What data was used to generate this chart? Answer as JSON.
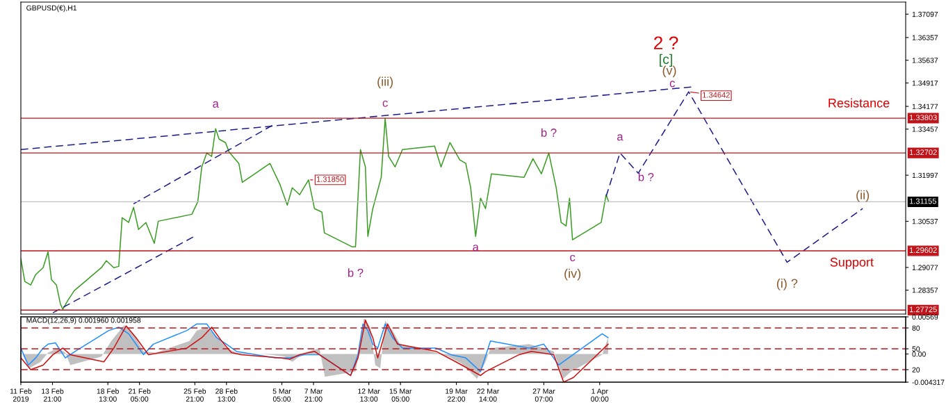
{
  "chart_data": [
    {
      "type": "line",
      "title": "GBPUSD(€),H1",
      "xlim": [
        "2019-02-11T05:00",
        "2019-04-26T19:00"
      ],
      "ylim": [
        1.276,
        1.3748
      ],
      "yticks": [
        1.37097,
        1.36357,
        1.35637,
        1.34917,
        1.34177,
        1.33457,
        1.31997,
        1.30537,
        1.29077,
        1.28357
      ],
      "tick_labels": "y",
      "grid": false,
      "legend": false,
      "series": [
        {
          "color": "#3a9d23",
          "x": [
            "2019-02-11T05:00",
            "2019-02-11T13:00",
            "2019-02-12T01:00",
            "2019-02-12T11:00",
            "2019-02-13T02:00",
            "2019-02-13T12:00",
            "2019-02-13T19:00",
            "2019-02-14T05:00",
            "2019-02-14T13:00",
            "2019-02-14T18:00",
            "2019-02-15T04:00",
            "2019-02-15T17:00",
            "2019-02-18T00:00",
            "2019-02-18T10:00",
            "2019-02-19T01:00",
            "2019-02-19T11:00",
            "2019-02-19T18:00",
            "2019-02-20T07:00",
            "2019-02-20T17:00",
            "2019-02-21T03:00",
            "2019-02-21T18:00",
            "2019-02-22T11:00",
            "2019-02-22T19:00",
            "2019-02-25T15:00",
            "2019-02-26T03:00",
            "2019-02-26T11:00",
            "2019-02-26T21:00",
            "2019-02-27T07:00",
            "2019-02-27T15:00",
            "2019-02-27T22:00",
            "2019-02-28T11:00",
            "2019-02-28T18:00",
            "2019-03-01T14:00",
            "2019-03-01T21:00",
            "2019-03-04T05:00",
            "2019-03-05T01:00",
            "2019-03-05T16:00",
            "2019-03-06T02:00",
            "2019-03-06T17:00",
            "2019-03-07T11:00",
            "2019-03-07T23:00",
            "2019-03-08T14:00",
            "2019-03-08T19:00",
            "2019-03-11T03:00",
            "2019-03-11T10:00",
            "2019-03-11T20:00",
            "2019-03-12T06:00",
            "2019-03-12T11:00",
            "2019-03-12T21:00",
            "2019-03-13T14:00",
            "2019-03-13T22:00",
            "2019-03-14T05:00",
            "2019-03-14T18:00",
            "2019-03-15T09:00",
            "2019-03-18T02:00",
            "2019-03-18T15:00",
            "2019-03-19T09:00",
            "2019-03-20T05:00",
            "2019-03-20T17:00",
            "2019-03-21T03:00",
            "2019-03-21T13:00",
            "2019-03-21T23:00",
            "2019-03-22T09:00",
            "2019-03-22T21:00",
            "2019-03-25T15:00",
            "2019-03-26T09:00",
            "2019-03-27T02:00",
            "2019-03-27T17:00",
            "2019-03-28T08:00",
            "2019-03-28T18:00",
            "2019-03-29T04:00",
            "2019-03-29T11:00",
            "2019-03-29T17:00",
            "2019-04-01T03:00",
            "2019-04-01T13:00",
            "2019-04-01T18:00"
          ],
          "values": [
            1.2935,
            1.2863,
            1.2852,
            1.2885,
            1.2907,
            1.2957,
            1.2869,
            1.2852,
            1.2792,
            1.2775,
            1.2803,
            1.2834,
            1.2907,
            1.2929,
            1.2907,
            1.2911,
            1.3065,
            1.305,
            1.3098,
            1.3028,
            1.305,
            1.2984,
            1.3054,
            1.3076,
            1.3116,
            1.3226,
            1.327,
            1.3259,
            1.3347,
            1.3314,
            1.3303,
            1.3274,
            1.3237,
            1.3177,
            1.3237,
            1.3171,
            1.3105,
            1.316,
            1.3138,
            1.3185,
            1.3094,
            1.3083,
            1.3017,
            1.2973,
            1.2973,
            1.3281,
            1.3226,
            1.3006,
            1.3094,
            1.3193,
            1.338,
            1.3259,
            1.3226,
            1.3281,
            1.3292,
            1.3226,
            1.3303,
            1.3248,
            1.3237,
            1.316,
            1.3006,
            1.3127,
            1.3094,
            1.3204,
            1.3193,
            1.3252,
            1.3204,
            1.327,
            1.316,
            1.305,
            1.3039,
            1.3127,
            1.2995,
            1.305,
            1.3138,
            1.3116
          ]
        },
        {
          "color": "#1c1c8a",
          "line_style": "dashed",
          "x": [
            "2019-04-01T13:00",
            "2019-04-02T17:00",
            "2019-04-04T06:00",
            "2019-04-08T12:00",
            "2019-04-16T19:00",
            "2019-04-23T04:00"
          ],
          "values": [
            1.3133,
            1.327,
            1.3206,
            1.3464,
            1.2924,
            1.3094
          ]
        },
        {
          "color": "#1c1c8a",
          "line_style": "dashed",
          "x": [
            "2019-02-11T05:00",
            "2019-04-08T17:00"
          ],
          "values": [
            1.3281,
            1.3479
          ]
        },
        {
          "color": "#1c1c8a",
          "line_style": "dashed",
          "x": [
            "2019-02-20T17:00",
            "2019-03-04T17:00"
          ],
          "values": [
            1.3109,
            1.3364
          ]
        },
        {
          "color": "#1c1c8a",
          "line_style": "dashed",
          "x": [
            "2019-02-13T22:00",
            "2019-02-25T20:00"
          ],
          "values": [
            1.2764,
            1.3006
          ]
        }
      ],
      "ref_lines": [
        {
          "axis": "y",
          "value": 1.33803,
          "label": "1.33803",
          "color": "#c0141a"
        },
        {
          "axis": "y",
          "value": 1.32702,
          "label": "1.32702",
          "color": "#c0141a"
        },
        {
          "axis": "y",
          "value": 1.31155,
          "label": "1.31155",
          "color": "#c0c0c0"
        },
        {
          "axis": "y",
          "value": 1.29602,
          "label": "1.29602",
          "color": "#c0141a"
        },
        {
          "axis": "y",
          "value": 1.27725,
          "label": "1.27725",
          "color": "#c0141a"
        }
      ],
      "annotations": [
        {
          "text": "1.31850",
          "x": "2019-03-07T11:00",
          "y": 1.3185
        },
        {
          "text": "1.34642",
          "x": "2019-04-08T12:00",
          "y": 1.3464
        },
        {
          "text": "a",
          "x": "2019-02-27T15:00",
          "y": 1.3347
        },
        {
          "text": "(iii)",
          "x": "2019-03-13T22:00",
          "y": 1.338
        },
        {
          "text": "c",
          "x": "2019-03-13T22:00",
          "y": 1.338
        },
        {
          "text": "b ?",
          "x": "2019-03-11T10:00",
          "y": 1.2973
        },
        {
          "text": "a",
          "x": "2019-03-21T13:00",
          "y": 1.3006
        },
        {
          "text": "b ?",
          "x": "2019-03-27T17:00",
          "y": 1.327
        },
        {
          "text": "c",
          "x": "2019-03-29T17:00",
          "y": 1.2995
        },
        {
          "text": "(iv)",
          "x": "2019-03-29T17:00",
          "y": 1.2995
        },
        {
          "text": "a",
          "x": "2019-04-02T17:00",
          "y": 1.327
        },
        {
          "text": "b ?",
          "x": "2019-04-04T06:00",
          "y": 1.3206
        },
        "2 ?",
        "[c]",
        {
          "text": "(v)",
          "x": "2019-04-08T12:00",
          "y": 1.3464
        },
        {
          "text": "c",
          "x": "2019-04-08T12:00",
          "y": 1.3464
        },
        {
          "text": "(i) ?",
          "x": "2019-04-16T19:00",
          "y": 1.2924
        },
        {
          "text": "(ii)",
          "x": "2019-04-23T04:00",
          "y": 1.3094
        },
        "Resistance",
        "Support"
      ]
    },
    {
      "type": "line",
      "title": "MACD(12,26,9) 0.001960 0.001958",
      "xlim": [
        "2019-02-11T05:00",
        "2019-04-26T19:00"
      ],
      "ylim": [
        -0.004317,
        0.00569
      ],
      "xticks": [
        {
          "value": "2019-02-11T05:00",
          "label": "11 Feb 2019"
        },
        {
          "value": "2019-02-13T21:00",
          "label": "13 Feb 21:00"
        },
        {
          "value": "2019-02-18T13:00",
          "label": "18 Feb 13:00"
        },
        {
          "value": "2019-02-21T05:00",
          "label": "21 Feb 05:00"
        },
        {
          "value": "2019-02-25T21:00",
          "label": "25 Feb 21:00"
        },
        {
          "value": "2019-02-28T13:00",
          "label": "28 Feb 13:00"
        },
        {
          "value": "2019-03-05T05:00",
          "label": "5 Mar 05:00"
        },
        {
          "value": "2019-03-07T21:00",
          "label": "7 Mar 21:00"
        },
        {
          "value": "2019-03-12T13:00",
          "label": "12 Mar 13:00"
        },
        {
          "value": "2019-03-15T05:00",
          "label": "15 Mar 05:00"
        },
        {
          "value": "2019-03-19T22:00",
          "label": "19 Mar 22:00"
        },
        {
          "value": "2019-03-22T14:00",
          "label": "22 Mar 14:00"
        },
        {
          "value": "2019-03-27T07:00",
          "label": "27 Mar 07:00"
        },
        {
          "value": "2019-04-01T00:00",
          "label": "1 Apr 00:00"
        }
      ],
      "yticks": [
        0.00569,
        {
          "value": 0,
          "label": "0.00"
        },
        -0.004317
      ],
      "grid": false,
      "legend": false,
      "series": [
        {
          "type": "area",
          "color": "#c0c0c0",
          "x": [
            "2019-02-11T05:00",
            "2019-02-11T22:00",
            "2019-02-12T21:00",
            "2019-02-13T12:00",
            "2019-02-14T08:00",
            "2019-02-14T23:00",
            "2019-02-15T09:00",
            "2019-02-18T00:00",
            "2019-02-18T20:00",
            "2019-02-19T22:00",
            "2019-02-20T17:00",
            "2019-02-21T13:00",
            "2019-02-22T14:00",
            "2019-02-25T10:00",
            "2019-02-26T01:00",
            "2019-02-26T22:00",
            "2019-02-27T17:00",
            "2019-02-28T13:00",
            "2019-03-01T09:00",
            "2019-03-04T05:00",
            "2019-03-05T11:00",
            "2019-03-06T02:00",
            "2019-03-07T03:00",
            "2019-03-08T09:00",
            "2019-03-08T20:00",
            "2019-03-11T10:00",
            "2019-03-11T20:00",
            "2019-03-12T03:00",
            "2019-03-12T16:00",
            "2019-03-13T02:00",
            "2019-03-13T12:00",
            "2019-03-13T22:00",
            "2019-03-14T13:00",
            "2019-03-15T04:00",
            "2019-03-18T05:00",
            "2019-03-19T06:00",
            "2019-03-20T07:00",
            "2019-03-21T16:00",
            "2019-03-22T09:00",
            "2019-03-22T19:00",
            "2019-03-26T01:00",
            "2019-03-27T07:00",
            "2019-03-28T03:00",
            "2019-03-28T22:00",
            "2019-03-29T14:00",
            "2019-04-01T05:00",
            "2019-04-01T17:00"
          ],
          "values": [
            0.0004,
            -0.0022,
            -0.0012,
            0.0002,
            0.0009,
            0.0002,
            -0.0017,
            -0.0004,
            0.002,
            0.0044,
            0.0031,
            0.0004,
            0.0002,
            0.002,
            0.0036,
            0.0041,
            0.0027,
            0.0009,
            0.0002,
            -0.0001,
            -0.0004,
            -0.0012,
            0.0002,
            0.0009,
            -0.0035,
            -0.0027,
            0.0015,
            0.0055,
            0.0041,
            -0.0017,
            -0.0022,
            0.0051,
            0.0036,
            0.0015,
            0.0002,
            -0.0004,
            -0.0014,
            -0.0038,
            -0.0012,
            0.0009,
            0.0015,
            0.0009,
            0.0004,
            -0.0038,
            -0.0027,
            -0.0001,
            0.0025
          ]
        },
        {
          "color": "#1e90ff",
          "x": [
            "2019-02-11T05:00",
            "2019-02-11T20:00",
            "2019-02-12T11:00",
            "2019-02-13T02:00",
            "2019-02-13T12:00",
            "2019-02-14T03:00",
            "2019-02-14T23:00",
            "2019-02-15T19:00",
            "2019-02-18T15:00",
            "2019-02-19T11:00",
            "2019-02-20T07:00",
            "2019-02-21T13:00",
            "2019-02-22T09:00",
            "2019-02-25T05:00",
            "2019-02-26T01:00",
            "2019-02-26T21:00",
            "2019-02-27T17:00",
            "2019-02-28T13:00",
            "2019-03-01T09:00",
            "2019-03-04T15:00",
            "2019-03-05T21:00",
            "2019-03-07T03:00",
            "2019-03-08T09:00",
            "2019-03-11T00:00",
            "2019-03-11T15:00",
            "2019-03-12T01:00",
            "2019-03-12T11:00",
            "2019-03-12T21:00",
            "2019-03-13T07:00",
            "2019-03-13T22:00",
            "2019-03-14T13:00",
            "2019-03-15T09:00",
            "2019-03-18T05:00",
            "2019-03-19T11:00",
            "2019-03-20T17:00",
            "2019-03-21T23:00",
            "2019-03-22T19:00",
            "2019-03-26T01:00",
            "2019-03-27T07:00",
            "2019-03-28T13:00",
            "2019-03-29T09:00",
            "2019-04-01T05:00",
            "2019-04-01T17:00"
          ],
          "values": [
            0.0009,
            -0.0017,
            -0.0006,
            0.0009,
            0.0015,
            0.0017,
            -0.0006,
            0.0004,
            0.0036,
            0.0041,
            0.0031,
            -0.0001,
            0.0015,
            0.0036,
            0.0046,
            0.0046,
            0.0025,
            0.0015,
            0.0004,
            -0.0006,
            -0.0006,
            -0.0001,
            -0.0001,
            -0.0033,
            -0.0001,
            0.0046,
            0.0036,
            0.0015,
            0.0009,
            0.0046,
            0.0025,
            0.0009,
            0.0009,
            -0.0001,
            -0.0006,
            -0.0027,
            0.002,
            0.0009,
            0.0015,
            -0.0017,
            -0.0006,
            0.0031,
            0.0025
          ]
        },
        {
          "color": "#d01010",
          "x": [
            "2019-02-11T05:00",
            "2019-02-12T01:00",
            "2019-02-13T02:00",
            "2019-02-13T22:00",
            "2019-02-14T18:00",
            "2019-02-15T09:00",
            "2019-02-18T05:00",
            "2019-02-19T01:00",
            "2019-02-20T02:00",
            "2019-02-20T22:00",
            "2019-02-21T23:00",
            "2019-02-25T05:00",
            "2019-02-26T11:00",
            "2019-02-27T07:00",
            "2019-02-28T03:00",
            "2019-02-28T23:00",
            "2019-03-01T19:00",
            "2019-03-05T01:00",
            "2019-03-05T21:00",
            "2019-03-06T17:00",
            "2019-03-07T23:00",
            "2019-03-11T00:00",
            "2019-03-11T15:00",
            "2019-03-12T06:00",
            "2019-03-12T21:00",
            "2019-03-13T07:00",
            "2019-03-14T03:00",
            "2019-03-14T23:00",
            "2019-03-18T05:00",
            "2019-03-19T21:00",
            "2019-03-21T23:00",
            "2019-03-22T09:00",
            "2019-03-25T05:00",
            "2019-03-26T06:00",
            "2019-03-28T03:00",
            "2019-03-28T23:00",
            "2019-03-29T19:00",
            "2019-04-01T17:00"
          ],
          "values": [
            -0.0006,
            -0.0024,
            -0.0017,
            -0.0001,
            0.0009,
            -0.0001,
            -0.0012,
            0.0009,
            0.0043,
            0.0025,
            -0.0001,
            0.0009,
            0.0025,
            0.0041,
            0.002,
            0.0002,
            -0.0001,
            -0.0006,
            -0.0008,
            -0.0001,
            0.0004,
            -0.0033,
            -0.0006,
            0.0052,
            0.0025,
            -0.0006,
            0.0046,
            0.0015,
            0.0004,
            -0.0012,
            -0.0033,
            -0.0027,
            -0.0001,
            0.0004,
            -0.0001,
            -0.0043,
            -0.0036,
            0.0015
          ]
        }
      ],
      "y2lim": [
        2,
        96
      ],
      "y2ticks": [
        20,
        50,
        80
      ],
      "ref_lines": [
        {
          "axis": "y2",
          "value": 80,
          "color": "#c0141a",
          "line_style": "dashed"
        },
        {
          "axis": "y2",
          "value": 50,
          "color": "#c0141a",
          "line_style": "dashed"
        },
        {
          "axis": "y2",
          "value": 20,
          "color": "#c0141a",
          "line_style": "dashed"
        }
      ]
    }
  ]
}
